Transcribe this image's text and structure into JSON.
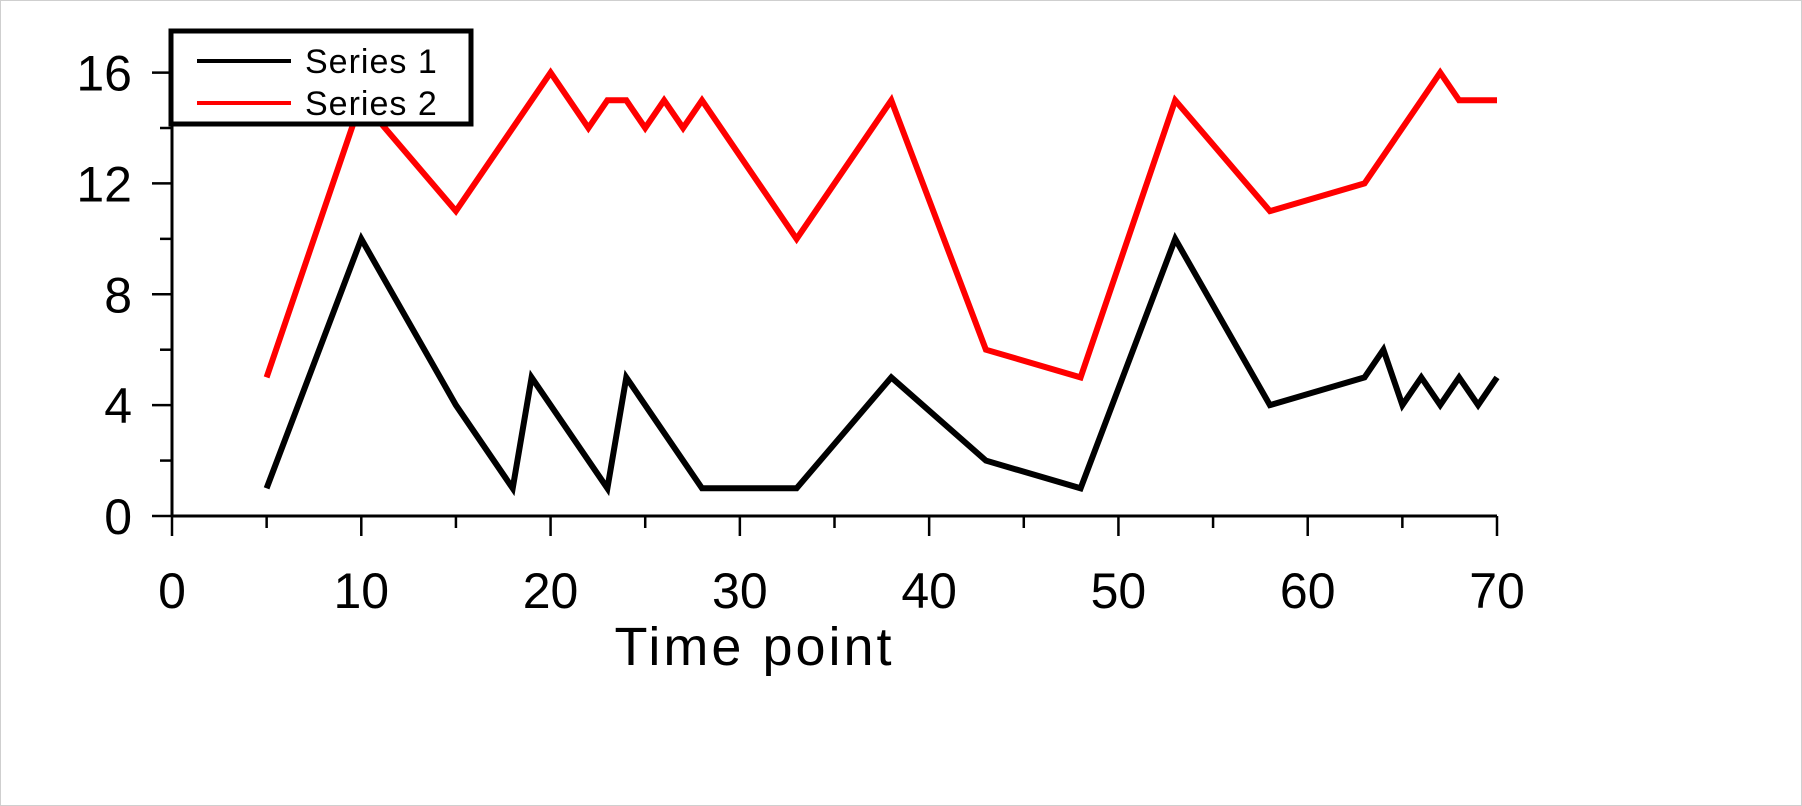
{
  "chart_data": {
    "type": "line",
    "title": "",
    "xlabel": "Time point",
    "ylabel": "",
    "xlim": [
      0,
      70
    ],
    "ylim": [
      0,
      17.5
    ],
    "xticks": [
      0,
      10,
      20,
      30,
      40,
      50,
      60,
      70
    ],
    "yticks": [
      0,
      4,
      8,
      12,
      16
    ],
    "grid": false,
    "legend_position": "top-left",
    "series": [
      {
        "name": "Series 1",
        "color": "#000000",
        "x": [
          5,
          10,
          15,
          18,
          19,
          23,
          24,
          28,
          33,
          38,
          43,
          48,
          53,
          58,
          63,
          64,
          65,
          66,
          67,
          68,
          69,
          70
        ],
        "y": [
          1,
          10,
          4,
          1,
          5,
          1,
          5,
          1,
          1,
          5,
          2,
          1,
          10,
          4,
          5,
          6,
          4,
          5,
          4,
          5,
          4,
          5
        ]
      },
      {
        "name": "Series 2",
        "color": "#ff0000",
        "x": [
          5,
          10,
          15,
          20,
          22,
          23,
          24,
          25,
          26,
          27,
          28,
          33,
          38,
          43,
          48,
          53,
          58,
          63,
          66,
          67,
          68,
          70
        ],
        "y": [
          5,
          15,
          11,
          16,
          14,
          15,
          15,
          14,
          15,
          14,
          15,
          10,
          15,
          6,
          5,
          15,
          11,
          12,
          15,
          16,
          15,
          15
        ]
      }
    ]
  }
}
